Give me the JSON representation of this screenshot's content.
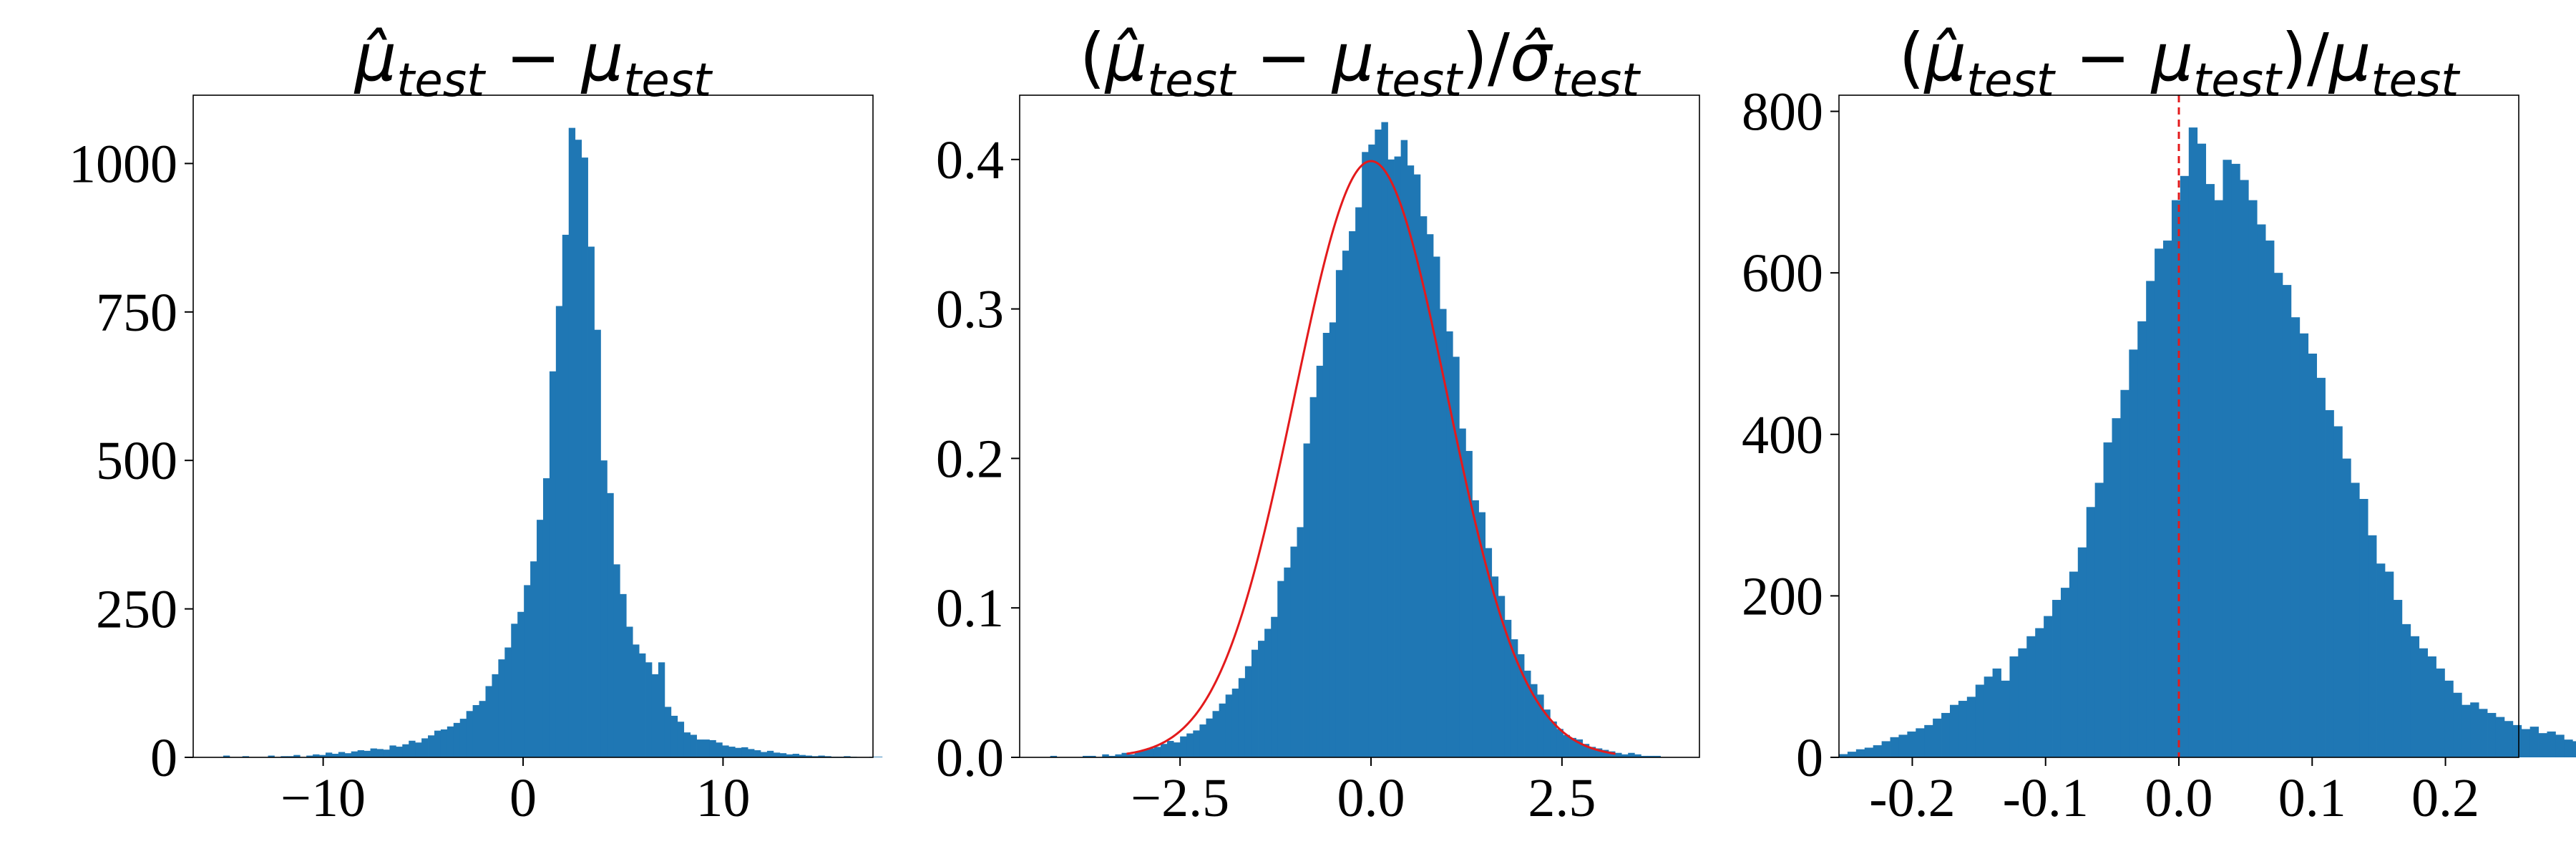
{
  "chart_data": [
    {
      "type": "bar",
      "title": "μ̂_test − μ_test",
      "title_parts": [
        {
          "text": "μ̂",
          "kind": "mu"
        },
        {
          "text": "test",
          "kind": "sub"
        },
        {
          "text": " − ",
          "kind": "op"
        },
        {
          "text": "μ",
          "kind": "mu"
        },
        {
          "text": "test",
          "kind": "sub"
        }
      ],
      "xlim": [
        -16.5,
        17.5
      ],
      "ylim": [
        0,
        1115
      ],
      "xticks": [
        -10,
        0,
        10
      ],
      "xtick_labels": [
        "−10",
        "0",
        "10"
      ],
      "yticks": [
        0,
        250,
        500,
        750,
        1000
      ],
      "ytick_labels": [
        "0",
        "250",
        "500",
        "750",
        "1000"
      ],
      "grid": false,
      "bin_start": -15.0,
      "bin_width": 0.32,
      "values": [
        3,
        0,
        0,
        2,
        0,
        0,
        0,
        3,
        0,
        2,
        2,
        4,
        0,
        3,
        5,
        4,
        8,
        6,
        9,
        7,
        10,
        12,
        11,
        15,
        14,
        13,
        20,
        18,
        22,
        28,
        25,
        32,
        37,
        45,
        47,
        52,
        58,
        65,
        78,
        88,
        95,
        120,
        140,
        165,
        185,
        225,
        245,
        290,
        330,
        400,
        470,
        650,
        760,
        880,
        1060,
        1040,
        1010,
        860,
        720,
        500,
        445,
        325,
        275,
        220,
        190,
        175,
        160,
        140,
        160,
        85,
        70,
        60,
        42,
        38,
        30,
        30,
        29,
        25,
        20,
        18,
        16,
        17,
        14,
        12,
        9,
        11,
        8,
        7,
        5,
        6,
        4,
        3,
        2,
        3,
        2,
        1,
        1,
        2,
        1,
        0,
        0,
        1,
        1,
        0,
        0
      ],
      "series_color": "#1f77b4"
    },
    {
      "type": "bar",
      "title": "(μ̂_test − μ_test)/σ̂_test",
      "title_parts": [
        {
          "text": "(",
          "kind": "op"
        },
        {
          "text": "μ̂",
          "kind": "mu"
        },
        {
          "text": "test",
          "kind": "sub"
        },
        {
          "text": " − ",
          "kind": "op"
        },
        {
          "text": "μ",
          "kind": "mu"
        },
        {
          "text": "test",
          "kind": "sub"
        },
        {
          "text": ")/",
          "kind": "op"
        },
        {
          "text": "σ̂",
          "kind": "mu"
        },
        {
          "text": "test",
          "kind": "sub"
        }
      ],
      "xlim": [
        -4.6,
        4.3
      ],
      "ylim": [
        0,
        0.443
      ],
      "xticks": [
        -2.5,
        0.0,
        2.5
      ],
      "xtick_labels": [
        "−2.5",
        "0.0",
        "2.5"
      ],
      "yticks": [
        0.0,
        0.1,
        0.2,
        0.3,
        0.4
      ],
      "ytick_labels": [
        "0.0",
        "0.1",
        "0.2",
        "0.3",
        "0.4"
      ],
      "grid": false,
      "bin_start": -4.2,
      "bin_width": 0.085,
      "values": [
        0.001,
        0,
        0,
        0,
        0,
        0.001,
        0.001,
        0,
        0.002,
        0.001,
        0.002,
        0.003,
        0.002,
        0.004,
        0.005,
        0.006,
        0.007,
        0.009,
        0.011,
        0.01,
        0.014,
        0.016,
        0.018,
        0.022,
        0.026,
        0.031,
        0.036,
        0.042,
        0.046,
        0.053,
        0.061,
        0.072,
        0.078,
        0.086,
        0.094,
        0.118,
        0.127,
        0.141,
        0.154,
        0.21,
        0.241,
        0.262,
        0.284,
        0.291,
        0.326,
        0.339,
        0.352,
        0.368,
        0.405,
        0.41,
        0.42,
        0.425,
        0.4,
        0.402,
        0.413,
        0.396,
        0.39,
        0.362,
        0.35,
        0.335,
        0.3,
        0.285,
        0.268,
        0.22,
        0.205,
        0.172,
        0.164,
        0.14,
        0.121,
        0.108,
        0.092,
        0.079,
        0.069,
        0.058,
        0.049,
        0.042,
        0.032,
        0.024,
        0.019,
        0.015,
        0.013,
        0.012,
        0.009,
        0.007,
        0.006,
        0.005,
        0.004,
        0.003,
        0.002,
        0.003,
        0.002,
        0.001,
        0.001,
        0.001,
        0
      ],
      "fit_curve": {
        "type": "normal-pdf",
        "mean": 0,
        "std": 1,
        "color": "#e31a1c"
      },
      "series_color": "#1f77b4"
    },
    {
      "type": "bar",
      "title": "(μ̂_test − μ_test)/μ_test",
      "title_parts": [
        {
          "text": "(",
          "kind": "op"
        },
        {
          "text": "μ̂",
          "kind": "mu"
        },
        {
          "text": "test",
          "kind": "sub"
        },
        {
          "text": " − ",
          "kind": "op"
        },
        {
          "text": "μ",
          "kind": "mu"
        },
        {
          "text": "test",
          "kind": "sub"
        },
        {
          "text": ")/",
          "kind": "op"
        },
        {
          "text": "μ",
          "kind": "mu"
        },
        {
          "text": "test",
          "kind": "sub"
        }
      ],
      "xlim": [
        -0.255,
        0.255
      ],
      "ylim": [
        0,
        820
      ],
      "xticks": [
        -0.2,
        -0.1,
        0.0,
        0.1,
        0.2
      ],
      "xtick_labels": [
        "-0.2",
        "-0.1",
        "0.0",
        "0.1",
        "0.2"
      ],
      "yticks": [
        0,
        200,
        400,
        600,
        800
      ],
      "ytick_labels": [
        "0",
        "200",
        "400",
        "600",
        "800"
      ],
      "grid": false,
      "bin_start": -0.255,
      "bin_width": 0.0064,
      "values": [
        4,
        7,
        10,
        12,
        15,
        20,
        25,
        28,
        32,
        36,
        40,
        48,
        55,
        65,
        70,
        75,
        90,
        100,
        110,
        95,
        125,
        135,
        150,
        160,
        175,
        195,
        210,
        230,
        260,
        310,
        340,
        390,
        420,
        455,
        505,
        540,
        590,
        630,
        640,
        690,
        720,
        780,
        760,
        710,
        690,
        740,
        735,
        715,
        690,
        660,
        640,
        600,
        585,
        545,
        525,
        500,
        470,
        430,
        410,
        370,
        340,
        320,
        275,
        240,
        230,
        195,
        165,
        150,
        135,
        125,
        110,
        95,
        80,
        65,
        68,
        60,
        55,
        50,
        45,
        40,
        35,
        38,
        30,
        32,
        28,
        22,
        20,
        18,
        15,
        12
      ],
      "reference_line": {
        "x": 0.0,
        "color": "#e31a1c",
        "style": "dashed"
      },
      "series_color": "#1f77b4"
    }
  ]
}
